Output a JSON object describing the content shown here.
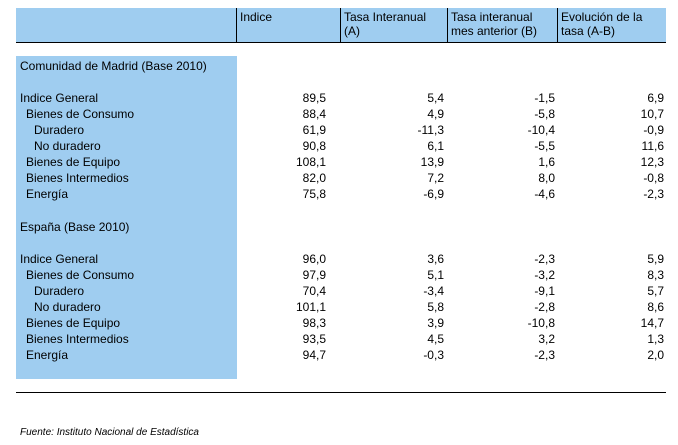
{
  "headers": {
    "col1": "Indice",
    "col2_line1": "Tasa Interanual",
    "col2_line2": "(A)",
    "col3_line1": "Tasa interanual",
    "col3_line2": "mes anterior (B)",
    "col4_line1": "Evolución de la",
    "col4_line2": "tasa (A-B)"
  },
  "sections": [
    {
      "title": "Comunidad de Madrid (Base 2010)",
      "rows": [
        {
          "label": "Indice General",
          "indice": "89,5",
          "tasa": "5,4",
          "tasa_ant": "-1,5",
          "evol": "6,9"
        },
        {
          "label": "Bienes de Consumo",
          "indice": "88,4",
          "tasa": "4,9",
          "tasa_ant": "-5,8",
          "evol": "10,7"
        },
        {
          "label": "Duradero",
          "indice": "61,9",
          "tasa": "-11,3",
          "tasa_ant": "-10,4",
          "evol": "-0,9"
        },
        {
          "label": "No duradero",
          "indice": "90,8",
          "tasa": "6,1",
          "tasa_ant": "-5,5",
          "evol": "11,6"
        },
        {
          "label": "Bienes de Equipo",
          "indice": "108,1",
          "tasa": "13,9",
          "tasa_ant": "1,6",
          "evol": "12,3"
        },
        {
          "label": "Bienes Intermedios",
          "indice": "82,0",
          "tasa": "7,2",
          "tasa_ant": "8,0",
          "evol": "-0,8"
        },
        {
          "label": "Energía",
          "indice": "75,8",
          "tasa": "-6,9",
          "tasa_ant": "-4,6",
          "evol": "-2,3"
        }
      ]
    },
    {
      "title": "España (Base 2010)",
      "rows": [
        {
          "label": "Indice General",
          "indice": "96,0",
          "tasa": "3,6",
          "tasa_ant": "-2,3",
          "evol": "5,9"
        },
        {
          "label": "Bienes de Consumo",
          "indice": "97,9",
          "tasa": "5,1",
          "tasa_ant": "-3,2",
          "evol": "8,3"
        },
        {
          "label": "Duradero",
          "indice": "70,4",
          "tasa": "-3,4",
          "tasa_ant": "-9,1",
          "evol": "5,7"
        },
        {
          "label": "No duradero",
          "indice": "101,1",
          "tasa": "5,8",
          "tasa_ant": "-2,8",
          "evol": "8,6"
        },
        {
          "label": "Bienes de Equipo",
          "indice": "98,3",
          "tasa": "3,9",
          "tasa_ant": "-10,8",
          "evol": "14,7"
        },
        {
          "label": "Bienes Intermedios",
          "indice": "93,5",
          "tasa": "4,5",
          "tasa_ant": "3,2",
          "evol": "1,3"
        },
        {
          "label": "Energía",
          "indice": "94,7",
          "tasa": "-0,3",
          "tasa_ant": "-2,3",
          "evol": "2,0"
        }
      ]
    }
  ],
  "source": "Fuente: Instituto Nacional de Estadística"
}
